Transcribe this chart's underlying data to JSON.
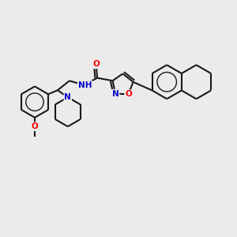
{
  "background_color": "#ebebeb",
  "bond_color": "#1a1a1a",
  "atom_colors": {
    "O": "#ff0000",
    "N": "#0000cd",
    "C": "#1a1a1a"
  },
  "lw": 1.5,
  "fontsize": 7.5
}
